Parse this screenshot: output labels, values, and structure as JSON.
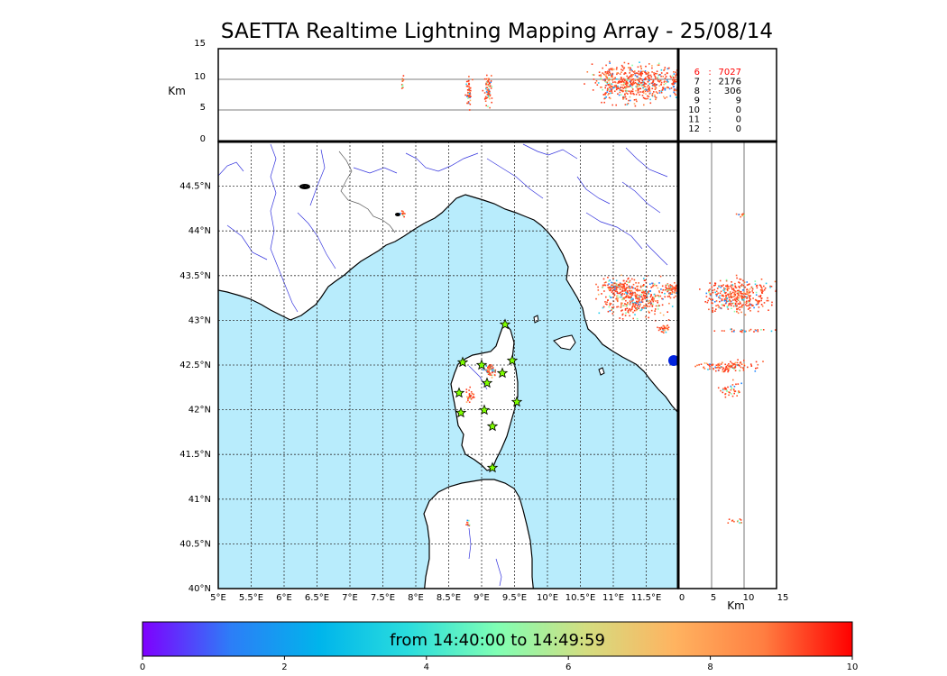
{
  "title": "SAETTA Realtime Lightning Mapping Array - 25/08/14",
  "alt_panel": {
    "ylabel": "Km",
    "yticks": [
      "15",
      "10",
      "5",
      "0"
    ]
  },
  "side_panel": {
    "xlabel": "Km",
    "xticks": [
      "0",
      "5",
      "10",
      "15"
    ]
  },
  "map": {
    "lon_ticks": [
      "5°E",
      "5.5°E",
      "6°E",
      "6.5°E",
      "7°E",
      "7.5°E",
      "8°E",
      "8.5°E",
      "9°E",
      "9.5°E",
      "10°E",
      "10.5°E",
      "11°E",
      "11.5°E"
    ],
    "lat_ticks": [
      "44.5°N",
      "44°N",
      "43.5°N",
      "43°N",
      "42.5°N",
      "42°N",
      "41.5°N",
      "41°N",
      "40.5°N",
      "40°N"
    ],
    "sea_color": "#b8ecfc",
    "land_color": "#ffffff",
    "river_color": "#3333dd",
    "station_color": "#7fff00",
    "station_icon": "star-icon"
  },
  "station_counts": [
    {
      "station": "6",
      "sep": ":",
      "count": "7027",
      "highlight": true
    },
    {
      "station": "7",
      "sep": ":",
      "count": "2176",
      "highlight": false
    },
    {
      "station": "8",
      "sep": ":",
      "count": "306",
      "highlight": false
    },
    {
      "station": "9",
      "sep": ":",
      "count": "9",
      "highlight": false
    },
    {
      "station": "10",
      "sep": ":",
      "count": "0",
      "highlight": false
    },
    {
      "station": "11",
      "sep": ":",
      "count": "0",
      "highlight": false
    },
    {
      "station": "12",
      "sep": ":",
      "count": "0",
      "highlight": false
    }
  ],
  "colorbar": {
    "caption": "from 14:40:00 to 14:49:59",
    "ticks": [
      "0",
      "2",
      "4",
      "6",
      "8",
      "10"
    ],
    "colors": [
      "#7f00ff",
      "#2c7ef7",
      "#00b5eb",
      "#2adddd",
      "#80ffb4",
      "#d4dd80",
      "#ffb360",
      "#ff7e41",
      "#ff0000"
    ]
  }
}
